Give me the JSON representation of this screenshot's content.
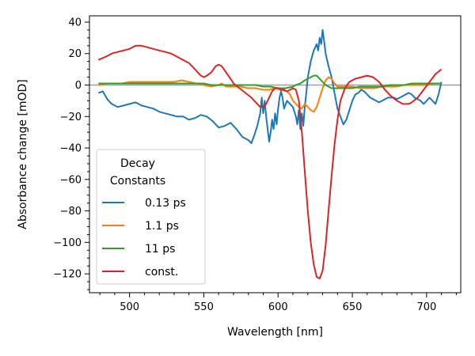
{
  "chart_data": {
    "type": "line",
    "title": "",
    "xlabel": "Wavelength [nm]",
    "ylabel": "Absorbance change [mOD]",
    "xlim": [
      473,
      723
    ],
    "ylim": [
      -132,
      44
    ],
    "xticks": [
      500,
      550,
      600,
      650,
      700
    ],
    "yticks": [
      40,
      20,
      0,
      -20,
      -40,
      -60,
      -80,
      -100,
      -120
    ],
    "grid": false,
    "zero_line": true,
    "legend": {
      "title_lines": [
        "Decay",
        "Constants"
      ],
      "placement": "lower-left"
    },
    "series": [
      {
        "name": "0.13 ps",
        "color": "#1f77b4",
        "points": [
          [
            479,
            -5
          ],
          [
            482,
            -4
          ],
          [
            485,
            -9
          ],
          [
            488,
            -12
          ],
          [
            492,
            -14
          ],
          [
            496,
            -13
          ],
          [
            500,
            -12
          ],
          [
            504,
            -11
          ],
          [
            508,
            -13
          ],
          [
            512,
            -14
          ],
          [
            516,
            -15
          ],
          [
            520,
            -17
          ],
          [
            524,
            -18
          ],
          [
            528,
            -19
          ],
          [
            532,
            -20
          ],
          [
            536,
            -20
          ],
          [
            540,
            -22
          ],
          [
            544,
            -21
          ],
          [
            548,
            -19
          ],
          [
            552,
            -20
          ],
          [
            556,
            -23
          ],
          [
            560,
            -27
          ],
          [
            564,
            -26
          ],
          [
            568,
            -24
          ],
          [
            572,
            -28
          ],
          [
            576,
            -33
          ],
          [
            580,
            -35
          ],
          [
            582,
            -37
          ],
          [
            584,
            -32
          ],
          [
            586,
            -26
          ],
          [
            588,
            -18
          ],
          [
            589,
            -8
          ],
          [
            590,
            -18
          ],
          [
            591,
            -10
          ],
          [
            592,
            -20
          ],
          [
            593,
            -28
          ],
          [
            594,
            -36
          ],
          [
            595,
            -30
          ],
          [
            596,
            -22
          ],
          [
            597,
            -28
          ],
          [
            598,
            -18
          ],
          [
            599,
            -25
          ],
          [
            600,
            -15
          ],
          [
            601,
            -8
          ],
          [
            602,
            -4
          ],
          [
            603,
            -8
          ],
          [
            604,
            -15
          ],
          [
            606,
            -10
          ],
          [
            608,
            -12
          ],
          [
            610,
            -14
          ],
          [
            612,
            -20
          ],
          [
            613,
            -25
          ],
          [
            614,
            -16
          ],
          [
            615,
            -28
          ],
          [
            616,
            -18
          ],
          [
            617,
            -26
          ],
          [
            618,
            -14
          ],
          [
            619,
            -5
          ],
          [
            620,
            5
          ],
          [
            622,
            15
          ],
          [
            624,
            22
          ],
          [
            626,
            26
          ],
          [
            627,
            22
          ],
          [
            628,
            30
          ],
          [
            629,
            26
          ],
          [
            630,
            35
          ],
          [
            631,
            28
          ],
          [
            632,
            20
          ],
          [
            634,
            12
          ],
          [
            636,
            5
          ],
          [
            638,
            -5
          ],
          [
            640,
            -15
          ],
          [
            642,
            -20
          ],
          [
            644,
            -25
          ],
          [
            646,
            -22
          ],
          [
            648,
            -16
          ],
          [
            650,
            -10
          ],
          [
            652,
            -6
          ],
          [
            654,
            -5
          ],
          [
            656,
            -3
          ],
          [
            658,
            -4
          ],
          [
            660,
            -6
          ],
          [
            662,
            -8
          ],
          [
            664,
            -9
          ],
          [
            666,
            -10
          ],
          [
            668,
            -11
          ],
          [
            670,
            -10
          ],
          [
            672,
            -9
          ],
          [
            674,
            -8
          ],
          [
            676,
            -8
          ],
          [
            678,
            -8
          ],
          [
            680,
            -9
          ],
          [
            682,
            -8
          ],
          [
            684,
            -7
          ],
          [
            686,
            -6
          ],
          [
            688,
            -5
          ],
          [
            690,
            -6
          ],
          [
            692,
            -8
          ],
          [
            694,
            -9
          ],
          [
            696,
            -10
          ],
          [
            698,
            -12
          ],
          [
            700,
            -10
          ],
          [
            702,
            -8
          ],
          [
            704,
            -10
          ],
          [
            706,
            -12
          ],
          [
            708,
            -6
          ],
          [
            710,
            2
          ]
        ]
      },
      {
        "name": "1.1 ps",
        "color": "#ff7f0e",
        "points": [
          [
            479,
            0
          ],
          [
            485,
            1
          ],
          [
            490,
            1
          ],
          [
            495,
            1
          ],
          [
            500,
            2
          ],
          [
            505,
            2
          ],
          [
            510,
            2
          ],
          [
            515,
            2
          ],
          [
            520,
            2
          ],
          [
            525,
            2
          ],
          [
            530,
            2
          ],
          [
            535,
            3
          ],
          [
            540,
            2
          ],
          [
            545,
            1
          ],
          [
            550,
            0
          ],
          [
            555,
            -1
          ],
          [
            560,
            0
          ],
          [
            562,
            1
          ],
          [
            565,
            -1
          ],
          [
            570,
            -1
          ],
          [
            575,
            -1
          ],
          [
            580,
            -2
          ],
          [
            585,
            -2
          ],
          [
            590,
            -3
          ],
          [
            594,
            -3
          ],
          [
            598,
            -2
          ],
          [
            602,
            -3
          ],
          [
            606,
            -4
          ],
          [
            608,
            -6
          ],
          [
            610,
            -10
          ],
          [
            612,
            -12
          ],
          [
            614,
            -14
          ],
          [
            616,
            -15
          ],
          [
            618,
            -12
          ],
          [
            620,
            -14
          ],
          [
            622,
            -16
          ],
          [
            624,
            -17
          ],
          [
            626,
            -14
          ],
          [
            628,
            -8
          ],
          [
            630,
            -2
          ],
          [
            632,
            3
          ],
          [
            634,
            5
          ],
          [
            636,
            4
          ],
          [
            638,
            1
          ],
          [
            640,
            -1
          ],
          [
            645,
            -1
          ],
          [
            650,
            -1
          ],
          [
            655,
            -2
          ],
          [
            660,
            -2
          ],
          [
            665,
            -2
          ],
          [
            670,
            -1
          ],
          [
            675,
            -1
          ],
          [
            680,
            -1
          ],
          [
            685,
            0
          ],
          [
            690,
            0
          ],
          [
            695,
            0
          ],
          [
            700,
            0
          ],
          [
            705,
            1
          ],
          [
            710,
            1
          ]
        ]
      },
      {
        "name": "11 ps",
        "color": "#2ca02c",
        "points": [
          [
            479,
            1
          ],
          [
            485,
            1
          ],
          [
            490,
            1
          ],
          [
            495,
            1
          ],
          [
            500,
            1
          ],
          [
            505,
            1
          ],
          [
            510,
            1
          ],
          [
            515,
            1
          ],
          [
            520,
            1
          ],
          [
            525,
            1
          ],
          [
            530,
            1
          ],
          [
            535,
            1
          ],
          [
            540,
            1
          ],
          [
            545,
            1
          ],
          [
            550,
            1
          ],
          [
            555,
            0
          ],
          [
            560,
            0
          ],
          [
            565,
            0
          ],
          [
            570,
            0
          ],
          [
            575,
            0
          ],
          [
            580,
            0
          ],
          [
            585,
            0
          ],
          [
            590,
            -1
          ],
          [
            595,
            -1
          ],
          [
            600,
            -2
          ],
          [
            605,
            -2
          ],
          [
            610,
            -1
          ],
          [
            612,
            0
          ],
          [
            615,
            1
          ],
          [
            618,
            3
          ],
          [
            620,
            4
          ],
          [
            622,
            5
          ],
          [
            624,
            6
          ],
          [
            626,
            6
          ],
          [
            628,
            4
          ],
          [
            630,
            2
          ],
          [
            632,
            0
          ],
          [
            634,
            -1
          ],
          [
            636,
            -2
          ],
          [
            640,
            -2
          ],
          [
            645,
            -2
          ],
          [
            650,
            -2
          ],
          [
            655,
            -1
          ],
          [
            660,
            -1
          ],
          [
            665,
            -1
          ],
          [
            670,
            -1
          ],
          [
            675,
            0
          ],
          [
            680,
            0
          ],
          [
            685,
            0
          ],
          [
            690,
            1
          ],
          [
            695,
            1
          ],
          [
            700,
            1
          ],
          [
            705,
            1
          ],
          [
            710,
            1
          ]
        ]
      },
      {
        "name": "const.",
        "color": "#d62728",
        "points": [
          [
            479,
            16
          ],
          [
            484,
            18
          ],
          [
            488,
            20
          ],
          [
            492,
            21
          ],
          [
            496,
            22
          ],
          [
            500,
            23
          ],
          [
            504,
            25
          ],
          [
            508,
            25
          ],
          [
            512,
            24
          ],
          [
            516,
            23
          ],
          [
            520,
            22
          ],
          [
            524,
            21
          ],
          [
            528,
            20
          ],
          [
            532,
            18
          ],
          [
            536,
            16
          ],
          [
            540,
            14
          ],
          [
            544,
            10
          ],
          [
            546,
            8
          ],
          [
            548,
            6
          ],
          [
            550,
            5
          ],
          [
            552,
            6
          ],
          [
            555,
            8
          ],
          [
            558,
            12
          ],
          [
            560,
            13
          ],
          [
            562,
            12
          ],
          [
            565,
            8
          ],
          [
            568,
            4
          ],
          [
            570,
            1
          ],
          [
            574,
            -2
          ],
          [
            578,
            -5
          ],
          [
            582,
            -8
          ],
          [
            584,
            -10
          ],
          [
            586,
            -12
          ],
          [
            588,
            -14
          ],
          [
            590,
            -14
          ],
          [
            592,
            -12
          ],
          [
            594,
            -8
          ],
          [
            596,
            -4
          ],
          [
            598,
            -2
          ],
          [
            600,
            -2
          ],
          [
            602,
            -3
          ],
          [
            604,
            -3
          ],
          [
            606,
            -4
          ],
          [
            608,
            -3
          ],
          [
            610,
            -2
          ],
          [
            612,
            -3
          ],
          [
            614,
            -10
          ],
          [
            616,
            -30
          ],
          [
            618,
            -55
          ],
          [
            620,
            -80
          ],
          [
            622,
            -100
          ],
          [
            624,
            -114
          ],
          [
            626,
            -122
          ],
          [
            628,
            -123
          ],
          [
            630,
            -118
          ],
          [
            632,
            -102
          ],
          [
            634,
            -80
          ],
          [
            636,
            -58
          ],
          [
            638,
            -38
          ],
          [
            640,
            -22
          ],
          [
            642,
            -10
          ],
          [
            645,
            -2
          ],
          [
            648,
            2
          ],
          [
            652,
            4
          ],
          [
            656,
            5
          ],
          [
            660,
            6
          ],
          [
            664,
            5
          ],
          [
            668,
            2
          ],
          [
            672,
            -3
          ],
          [
            676,
            -7
          ],
          [
            680,
            -10
          ],
          [
            684,
            -12
          ],
          [
            686,
            -12
          ],
          [
            688,
            -12
          ],
          [
            690,
            -11
          ],
          [
            694,
            -8
          ],
          [
            698,
            -3
          ],
          [
            702,
            2
          ],
          [
            706,
            7
          ],
          [
            710,
            10
          ]
        ]
      }
    ]
  }
}
